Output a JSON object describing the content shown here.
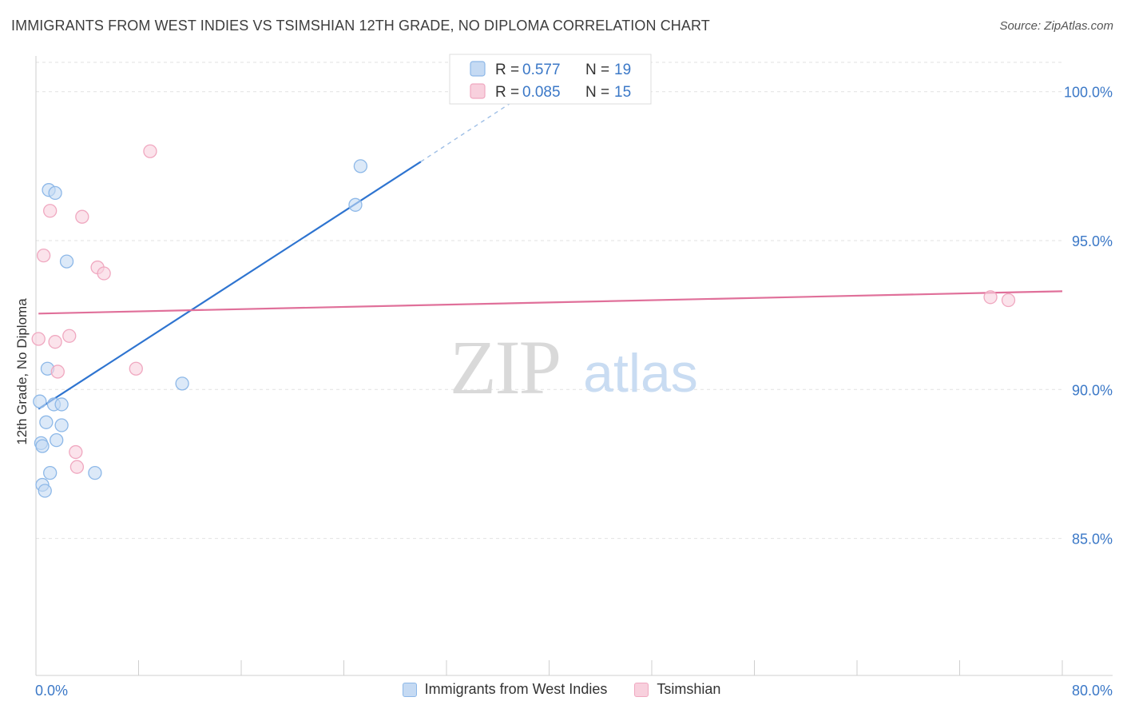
{
  "header": {
    "title": "IMMIGRANTS FROM WEST INDIES VS TSIMSHIAN 12TH GRADE, NO DIPLOMA CORRELATION CHART",
    "source": "Source: ZipAtlas.com"
  },
  "watermark": {
    "zip": "ZIP",
    "atlas": "atlas"
  },
  "chart_data": {
    "type": "scatter",
    "xlabel": "",
    "ylabel": "12th Grade, No Diploma",
    "xlim": [
      0,
      80
    ],
    "ylim": [
      80.4,
      101.2
    ],
    "x_tick_labels": [
      {
        "value": 0,
        "label": "0.0%"
      },
      {
        "value": 80,
        "label": "80.0%"
      }
    ],
    "y_tick_labels": [
      {
        "value": 100,
        "label": "100.0%"
      },
      {
        "value": 95,
        "label": "95.0%"
      },
      {
        "value": 90,
        "label": "90.0%"
      },
      {
        "value": 85,
        "label": "85.0%"
      }
    ],
    "grid": true,
    "legend_position": "bottom",
    "series": [
      {
        "name": "Immigrants from West Indies",
        "color": "#8db8e8",
        "fill": "#c5daf3",
        "line_color": "#2e74d0",
        "R": "0.577",
        "N": "19",
        "points": [
          [
            0.3,
            89.6
          ],
          [
            0.4,
            88.2
          ],
          [
            0.5,
            88.1
          ],
          [
            0.5,
            86.8
          ],
          [
            0.7,
            86.6
          ],
          [
            0.8,
            88.9
          ],
          [
            0.9,
            90.7
          ],
          [
            1.0,
            96.7
          ],
          [
            1.1,
            87.2
          ],
          [
            1.4,
            89.5
          ],
          [
            1.5,
            96.6
          ],
          [
            1.6,
            88.3
          ],
          [
            2.0,
            89.5
          ],
          [
            2.0,
            88.8
          ],
          [
            2.4,
            94.3
          ],
          [
            4.6,
            87.2
          ],
          [
            11.4,
            90.2
          ],
          [
            24.9,
            96.2
          ],
          [
            25.3,
            97.5
          ]
        ],
        "trend": {
          "x0": 0.2,
          "y0": 89.35,
          "x1": 30.0,
          "y1": 97.65,
          "dash_to_x": 38.0,
          "dash_to_y": 99.9
        }
      },
      {
        "name": "Tsimshian",
        "color": "#f0a8c0",
        "fill": "#f8d0dd",
        "line_color": "#e0709a",
        "R": "0.085",
        "N": "15",
        "points": [
          [
            0.2,
            91.7
          ],
          [
            0.6,
            94.5
          ],
          [
            1.1,
            96.0
          ],
          [
            1.5,
            91.6
          ],
          [
            1.7,
            90.6
          ],
          [
            2.6,
            91.8
          ],
          [
            3.1,
            87.9
          ],
          [
            3.2,
            87.4
          ],
          [
            3.6,
            95.8
          ],
          [
            4.8,
            94.1
          ],
          [
            5.3,
            93.9
          ],
          [
            7.8,
            90.7
          ],
          [
            8.9,
            98.0
          ],
          [
            74.4,
            93.1
          ],
          [
            75.8,
            93.0
          ]
        ],
        "trend": {
          "x0": 0.2,
          "y0": 92.55,
          "x1": 80.0,
          "y1": 93.3
        }
      }
    ]
  },
  "legend_top": {
    "r_label": "R =",
    "n_label": "N ="
  }
}
